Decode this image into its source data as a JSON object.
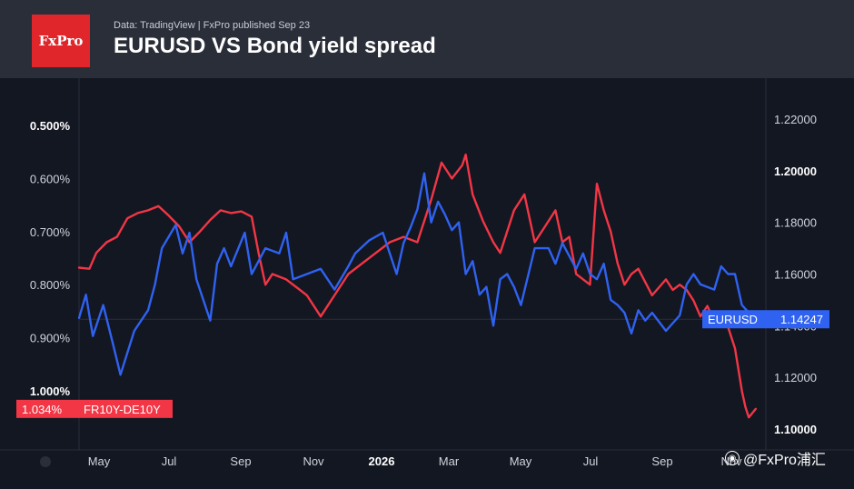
{
  "header": {
    "logo_text": "FxPro",
    "meta": "Data: TradingView  |  FxPro published Sep 23",
    "title": "EURUSD VS Bond yield spread"
  },
  "watermark": "@FxPro浦汇",
  "colors": {
    "background": "#131722",
    "header_bg": "#2a2e39",
    "eurusd": "#2f62f0",
    "spread": "#f23645",
    "logo_bg": "#e0252b"
  },
  "chart_data": {
    "type": "line",
    "x_ticks": [
      "May",
      "Jul",
      "Sep",
      "Nov",
      "2026",
      "Mar",
      "May",
      "Jul",
      "Sep",
      "Nov"
    ],
    "left_axis": {
      "ticks": [
        "0.500%",
        "0.600%",
        "0.700%",
        "0.800%",
        "0.900%",
        "1.000%"
      ],
      "values": [
        0.5,
        0.6,
        0.7,
        0.8,
        0.9,
        1.0
      ],
      "inverted": true,
      "bold_ticks": [
        "0.500%",
        "1.000%"
      ]
    },
    "right_axis": {
      "ticks": [
        "1.22000",
        "1.20000",
        "1.18000",
        "1.16000",
        "1.14000",
        "1.12000",
        "1.10000"
      ],
      "values": [
        1.22,
        1.2,
        1.18,
        1.16,
        1.14,
        1.12,
        1.1
      ],
      "bold_ticks": [
        "1.20000",
        "1.10000"
      ]
    },
    "series": [
      {
        "name": "EURUSD",
        "axis": "right",
        "last_value_label": "1.14247",
        "x": [
          0,
          0.01,
          0.02,
          0.035,
          0.05,
          0.06,
          0.08,
          0.1,
          0.11,
          0.12,
          0.14,
          0.15,
          0.16,
          0.17,
          0.19,
          0.2,
          0.21,
          0.22,
          0.24,
          0.25,
          0.27,
          0.29,
          0.3,
          0.31,
          0.33,
          0.35,
          0.37,
          0.39,
          0.4,
          0.42,
          0.44,
          0.45,
          0.46,
          0.47,
          0.48,
          0.49,
          0.5,
          0.51,
          0.52,
          0.53,
          0.54,
          0.55,
          0.56,
          0.57,
          0.58,
          0.59,
          0.6,
          0.61,
          0.62,
          0.63,
          0.64,
          0.66,
          0.68,
          0.69,
          0.7,
          0.72,
          0.73,
          0.74,
          0.75,
          0.76,
          0.77,
          0.78,
          0.79,
          0.8,
          0.81,
          0.82,
          0.83,
          0.85,
          0.87,
          0.88,
          0.89,
          0.9,
          0.92,
          0.93,
          0.94,
          0.95,
          0.96,
          0.97,
          0.98
        ],
        "y": [
          1.143,
          1.152,
          1.136,
          1.148,
          1.132,
          1.121,
          1.138,
          1.146,
          1.156,
          1.17,
          1.179,
          1.168,
          1.176,
          1.158,
          1.142,
          1.164,
          1.17,
          1.163,
          1.176,
          1.16,
          1.17,
          1.168,
          1.176,
          1.158,
          1.16,
          1.162,
          1.154,
          1.163,
          1.168,
          1.173,
          1.176,
          1.168,
          1.16,
          1.172,
          1.178,
          1.185,
          1.199,
          1.18,
          1.188,
          1.183,
          1.177,
          1.18,
          1.16,
          1.165,
          1.152,
          1.155,
          1.14,
          1.158,
          1.16,
          1.155,
          1.148,
          1.17,
          1.17,
          1.164,
          1.172,
          1.162,
          1.168,
          1.16,
          1.158,
          1.164,
          1.15,
          1.148,
          1.145,
          1.137,
          1.146,
          1.142,
          1.145,
          1.138,
          1.144,
          1.156,
          1.16,
          1.156,
          1.154,
          1.163,
          1.16,
          1.16,
          1.148,
          1.145,
          1.1425
        ]
      },
      {
        "name": "FR10Y-DE10Y",
        "axis": "left",
        "last_value_label": "1.034%",
        "x": [
          0,
          0.015,
          0.025,
          0.04,
          0.055,
          0.07,
          0.085,
          0.1,
          0.115,
          0.13,
          0.145,
          0.16,
          0.175,
          0.19,
          0.205,
          0.22,
          0.235,
          0.25,
          0.26,
          0.27,
          0.28,
          0.3,
          0.32,
          0.33,
          0.35,
          0.37,
          0.39,
          0.41,
          0.43,
          0.45,
          0.47,
          0.49,
          0.5,
          0.51,
          0.525,
          0.54,
          0.555,
          0.56,
          0.57,
          0.585,
          0.6,
          0.61,
          0.63,
          0.645,
          0.66,
          0.675,
          0.69,
          0.7,
          0.71,
          0.72,
          0.74,
          0.75,
          0.76,
          0.77,
          0.78,
          0.79,
          0.8,
          0.81,
          0.83,
          0.85,
          0.86,
          0.87,
          0.88,
          0.89,
          0.9,
          0.91,
          0.92,
          0.93,
          0.94,
          0.95,
          0.955,
          0.96,
          0.965,
          0.97,
          0.98
        ],
        "y": [
          0.768,
          0.77,
          0.74,
          0.72,
          0.71,
          0.675,
          0.665,
          0.66,
          0.652,
          0.67,
          0.69,
          0.72,
          0.7,
          0.678,
          0.66,
          0.665,
          0.662,
          0.672,
          0.74,
          0.8,
          0.78,
          0.79,
          0.81,
          0.82,
          0.86,
          0.82,
          0.78,
          0.76,
          0.74,
          0.72,
          0.71,
          0.72,
          0.68,
          0.64,
          0.57,
          0.6,
          0.575,
          0.555,
          0.63,
          0.68,
          0.72,
          0.74,
          0.66,
          0.63,
          0.72,
          0.69,
          0.66,
          0.72,
          0.71,
          0.78,
          0.8,
          0.61,
          0.66,
          0.7,
          0.76,
          0.8,
          0.78,
          0.77,
          0.82,
          0.79,
          0.81,
          0.8,
          0.81,
          0.83,
          0.86,
          0.84,
          0.87,
          0.86,
          0.88,
          0.92,
          0.96,
          1.0,
          1.03,
          1.05,
          1.034
        ]
      }
    ]
  }
}
